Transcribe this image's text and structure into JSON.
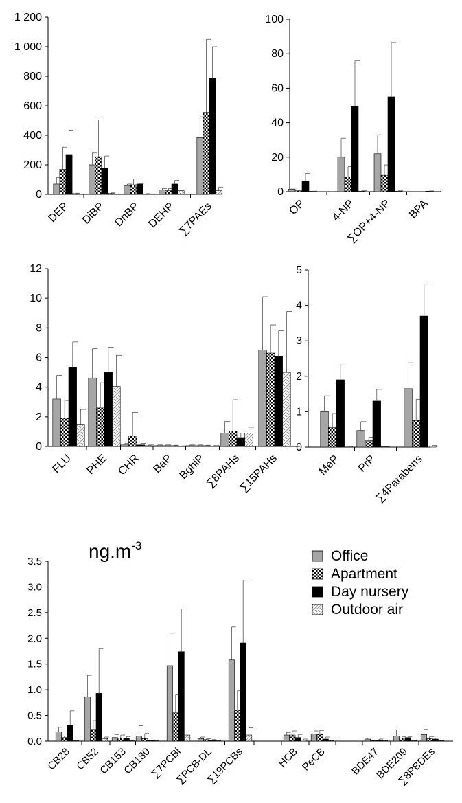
{
  "unit_label": "ng.m",
  "unit_exponent": "-3",
  "legend": [
    {
      "label": "Office",
      "key": "office"
    },
    {
      "label": "Apartment",
      "key": "apartment"
    },
    {
      "label": "Day nursery",
      "key": "nursery"
    },
    {
      "label": "Outdoor air",
      "key": "outdoor"
    }
  ],
  "fills": {
    "office": "#a6a6a6",
    "apartment": "checker",
    "nursery": "#000000",
    "outdoor": "dots"
  },
  "chart_data": [
    {
      "id": "paes",
      "type": "bar",
      "categories": [
        "DEP",
        "DiBP",
        "DnBP",
        "DEHP",
        "∑7PAEs"
      ],
      "ylim": [
        0,
        1200
      ],
      "yticks": [
        {
          "v": 0,
          "t": "0"
        },
        {
          "v": 200,
          "t": "200"
        },
        {
          "v": 400,
          "t": "400"
        },
        {
          "v": 600,
          "t": "600"
        },
        {
          "v": 800,
          "t": "800"
        },
        {
          "v": 1000,
          "t": "1 000"
        },
        {
          "v": 1200,
          "t": "1 200"
        }
      ],
      "series": [
        {
          "key": "office",
          "values": [
            70,
            200,
            60,
            30,
            385
          ],
          "errors": [
            45,
            80,
            10,
            10,
            140
          ]
        },
        {
          "key": "apartment",
          "values": [
            170,
            255,
            65,
            25,
            555
          ],
          "errors": [
            150,
            250,
            40,
            15,
            495
          ]
        },
        {
          "key": "nursery",
          "values": [
            270,
            180,
            70,
            70,
            785
          ],
          "errors": [
            165,
            80,
            5,
            25,
            215
          ]
        },
        {
          "key": "outdoor",
          "values": [
            5,
            8,
            3,
            25,
            25
          ],
          "errors": [
            3,
            5,
            2,
            5,
            25
          ]
        }
      ]
    },
    {
      "id": "phenols",
      "type": "bar",
      "categories": [
        "OP",
        "4-NP",
        "∑OP+4-NP",
        "BPA"
      ],
      "ylim": [
        0,
        100
      ],
      "yticks": [
        {
          "v": 0,
          "t": "0"
        },
        {
          "v": 20,
          "t": "20"
        },
        {
          "v": 40,
          "t": "40"
        },
        {
          "v": 60,
          "t": "60"
        },
        {
          "v": 80,
          "t": "80"
        },
        {
          "v": 100,
          "t": "100"
        }
      ],
      "series": [
        {
          "key": "office",
          "values": [
            1.5,
            20,
            22,
            0
          ],
          "errors": [
            0.6,
            11,
            11,
            0
          ]
        },
        {
          "key": "apartment",
          "values": [
            0.5,
            8.5,
            9.5,
            0
          ],
          "errors": [
            0.4,
            6,
            6,
            0
          ]
        },
        {
          "key": "nursery",
          "values": [
            6,
            49.5,
            55,
            0.3
          ],
          "errors": [
            4.5,
            26.5,
            31.5,
            0.1
          ]
        },
        {
          "key": "outdoor",
          "values": [
            0.2,
            0.3,
            0.3,
            0.1
          ],
          "errors": [
            0.1,
            0.4,
            0.2,
            0.05
          ]
        }
      ]
    },
    {
      "id": "pahs",
      "type": "bar",
      "categories": [
        "FLU",
        "PHE",
        "CHR",
        "BaP",
        "BghiP",
        "∑8PAHs",
        "∑15PAHs"
      ],
      "ylim": [
        0,
        12
      ],
      "yticks": [
        {
          "v": 0,
          "t": "0"
        },
        {
          "v": 2,
          "t": "2"
        },
        {
          "v": 4,
          "t": "4"
        },
        {
          "v": 6,
          "t": "6"
        },
        {
          "v": 8,
          "t": "8"
        },
        {
          "v": 10,
          "t": "10"
        },
        {
          "v": 12,
          "t": "12"
        }
      ],
      "series": [
        {
          "key": "office",
          "values": [
            3.2,
            4.6,
            0.1,
            0.05,
            0.05,
            0.9,
            6.5
          ],
          "errors": [
            1.6,
            2.0,
            0.1,
            0.05,
            0.05,
            0.8,
            3.6
          ]
        },
        {
          "key": "apartment",
          "values": [
            1.9,
            2.6,
            0.7,
            0.05,
            0.05,
            1.05,
            6.3
          ],
          "errors": [
            1.2,
            1.7,
            1.6,
            0.05,
            0.05,
            2.1,
            1.9
          ]
        },
        {
          "key": "nursery",
          "values": [
            5.35,
            5.0,
            0.1,
            0.05,
            0.05,
            0.6,
            6.1
          ],
          "errors": [
            1.7,
            1.7,
            0.1,
            0.03,
            0.03,
            0.3,
            1.7
          ]
        },
        {
          "key": "outdoor",
          "values": [
            1.5,
            4.05,
            0.05,
            0.02,
            0.03,
            0.9,
            5.0
          ],
          "errors": [
            1.0,
            2.1,
            0.05,
            0.02,
            0.03,
            0.4,
            4.1
          ]
        }
      ]
    },
    {
      "id": "parabens",
      "type": "bar",
      "categories": [
        "MeP",
        "PrP",
        "∑4Parabens"
      ],
      "ylim": [
        0,
        5
      ],
      "yticks": [
        {
          "v": 0,
          "t": "0"
        },
        {
          "v": 1,
          "t": "1"
        },
        {
          "v": 2,
          "t": "2"
        },
        {
          "v": 3,
          "t": "3"
        },
        {
          "v": 4,
          "t": "4"
        },
        {
          "v": 5,
          "t": "5"
        }
      ],
      "series": [
        {
          "key": "office",
          "values": [
            1.0,
            0.47,
            1.65
          ],
          "errors": [
            0.45,
            0.25,
            0.73
          ]
        },
        {
          "key": "apartment",
          "values": [
            0.55,
            0.18,
            0.75
          ],
          "errors": [
            0.4,
            0.1,
            0.6
          ]
        },
        {
          "key": "nursery",
          "values": [
            1.9,
            1.3,
            3.7
          ],
          "errors": [
            0.42,
            0.33,
            0.9
          ]
        },
        {
          "key": "outdoor",
          "values": [
            0.02,
            0.01,
            0.03
          ],
          "errors": [
            0.01,
            0.01,
            0.02
          ]
        }
      ]
    },
    {
      "id": "pcbs",
      "type": "bar",
      "categories": [
        "CB28",
        "CB52",
        "CB153",
        "CB180",
        "∑7PCBi",
        "∑PCB-DL",
        "∑19PCBs",
        "",
        "HCB",
        "PeCB",
        "",
        "BDE47",
        "BDE209",
        "∑8PBDEs"
      ],
      "ylim": [
        0,
        3.5
      ],
      "yticks": [
        {
          "v": 0,
          "t": "0.0"
        },
        {
          "v": 0.5,
          "t": "0.5"
        },
        {
          "v": 1,
          "t": "1.0"
        },
        {
          "v": 1.5,
          "t": "1.5"
        },
        {
          "v": 2,
          "t": "2.0"
        },
        {
          "v": 2.5,
          "t": "2.5"
        },
        {
          "v": 3,
          "t": "3.0"
        },
        {
          "v": 3.5,
          "t": "3.5"
        }
      ],
      "series": [
        {
          "key": "office",
          "values": [
            0.18,
            0.86,
            0.07,
            0.1,
            1.47,
            0.05,
            1.58,
            0,
            0.12,
            0.14,
            0,
            0.04,
            0.1,
            0.13
          ],
          "errors": [
            0.09,
            0.42,
            0.06,
            0.2,
            0.63,
            0.03,
            0.64,
            0,
            0.05,
            0.06,
            0,
            0.02,
            0.12,
            0.1
          ]
        },
        {
          "key": "apartment",
          "values": [
            0.07,
            0.23,
            0.06,
            0.05,
            0.55,
            0.03,
            0.6,
            0,
            0.12,
            0.13,
            0,
            0.01,
            0.06,
            0.05
          ],
          "errors": [
            0.03,
            0.17,
            0.06,
            0.1,
            0.35,
            0.02,
            0.38,
            0,
            0.08,
            0.08,
            0,
            0.01,
            0.03,
            0.04
          ]
        },
        {
          "key": "nursery",
          "values": [
            0.31,
            0.93,
            0.05,
            0.01,
            1.74,
            0.02,
            1.91,
            0,
            0.07,
            0.04,
            0,
            0.02,
            0.07,
            0.04
          ],
          "errors": [
            0.28,
            0.87,
            0.04,
            0.01,
            0.83,
            0.01,
            1.22,
            0,
            0.06,
            0.04,
            0,
            0.02,
            0.02,
            0.02
          ]
        },
        {
          "key": "outdoor",
          "values": [
            0.01,
            0.05,
            0.01,
            0.01,
            0.12,
            0.01,
            0.12,
            0,
            0.02,
            0.01,
            0,
            0.01,
            0.01,
            0.01
          ],
          "errors": [
            0.01,
            0.03,
            0.01,
            0.01,
            0.1,
            0.01,
            0.14,
            0,
            0.02,
            0.01,
            0,
            0.01,
            0.01,
            0.01
          ]
        }
      ]
    }
  ]
}
